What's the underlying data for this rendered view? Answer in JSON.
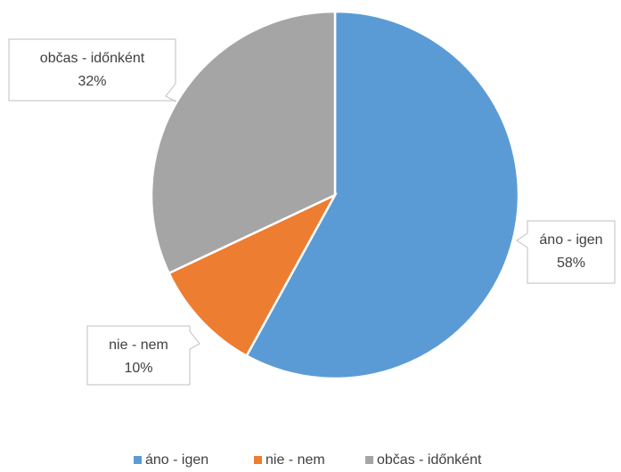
{
  "chart_data": {
    "type": "pie",
    "categories": [
      "áno - igen",
      "nie - nem",
      "občas - időnként"
    ],
    "values": [
      58,
      10,
      32
    ],
    "value_labels": [
      "58%",
      "10%",
      "32%"
    ],
    "colors": [
      "#5b9bd5",
      "#ed7d31",
      "#a5a5a5"
    ],
    "legend": "bottom"
  }
}
